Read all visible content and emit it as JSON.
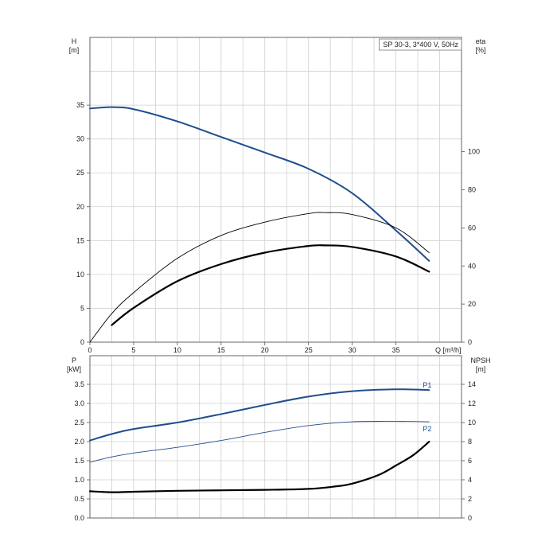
{
  "chart_data": [
    {
      "type": "line",
      "title": "SP 30-3, 3*400 V, 50Hz",
      "xlabel": "Q [m³/h]",
      "ylabel_left": [
        "H",
        "[m]"
      ],
      "ylabel_right": [
        "eta",
        "[%]"
      ],
      "xlim": [
        0,
        42.5
      ],
      "xticks": [
        0,
        5,
        10,
        15,
        20,
        25,
        30,
        35
      ],
      "ylim_left": [
        0,
        45
      ],
      "yticks_left": [
        0,
        5,
        10,
        15,
        20,
        25,
        30,
        35
      ],
      "ylim_right": [
        0,
        160
      ],
      "yticks_right": [
        0,
        20,
        40,
        60,
        80,
        100
      ],
      "grid": true,
      "series": [
        {
          "axis": "left",
          "color": "#1f4e8c",
          "width": 2.0,
          "x": [
            0,
            2.5,
            5,
            10,
            15,
            20,
            25,
            30,
            35,
            38.8
          ],
          "values": [
            34.5,
            34.7,
            34.4,
            32.6,
            30.3,
            28.0,
            25.6,
            22.0,
            16.5,
            12.0
          ]
        },
        {
          "axis": "right",
          "color": "#000000",
          "width": 0.9,
          "x": [
            0,
            2.5,
            5,
            10,
            15,
            20,
            25,
            27,
            30,
            35,
            38.8
          ],
          "values": [
            0,
            15,
            26,
            44,
            56,
            63,
            67.5,
            68,
            67,
            60,
            47
          ]
        },
        {
          "axis": "right",
          "color": "#000000",
          "width": 2.2,
          "x": [
            2.5,
            5,
            10,
            15,
            20,
            25,
            27,
            30,
            35,
            38.8
          ],
          "values": [
            9,
            18,
            32,
            41,
            47,
            50.5,
            50.8,
            50,
            45,
            37
          ]
        }
      ]
    },
    {
      "type": "line",
      "xlabel": "",
      "ylabel_left": [
        "P",
        "[kW]"
      ],
      "ylabel_right": [
        "NPSH",
        "[m]"
      ],
      "xlim": [
        0,
        42.5
      ],
      "ylim_left": [
        0,
        4.25
      ],
      "yticks_left": [
        0.0,
        0.5,
        1.0,
        1.5,
        2.0,
        2.5,
        3.0,
        3.5
      ],
      "ylim_right": [
        0,
        17
      ],
      "yticks_right": [
        0,
        2,
        4,
        6,
        8,
        10,
        12,
        14
      ],
      "grid": true,
      "series": [
        {
          "name": "P1",
          "axis": "left",
          "color": "#1f4e8c",
          "width": 2.0,
          "x": [
            0,
            2.5,
            5,
            10,
            15,
            20,
            25,
            30,
            35,
            38.8
          ],
          "values": [
            2.03,
            2.2,
            2.33,
            2.5,
            2.72,
            2.96,
            3.18,
            3.32,
            3.37,
            3.35
          ]
        },
        {
          "name": "P2",
          "axis": "left",
          "color": "#1f4e8c",
          "width": 0.9,
          "x": [
            0,
            2.5,
            5,
            10,
            15,
            20,
            25,
            30,
            35,
            38.8
          ],
          "values": [
            1.46,
            1.6,
            1.7,
            1.85,
            2.03,
            2.24,
            2.42,
            2.52,
            2.53,
            2.52
          ]
        },
        {
          "axis": "right",
          "color": "#000000",
          "width": 2.2,
          "x": [
            0,
            2.5,
            5,
            10,
            15,
            20,
            25,
            28,
            30,
            33,
            35,
            37,
            38.8
          ],
          "values": [
            2.8,
            2.7,
            2.75,
            2.85,
            2.9,
            2.95,
            3.05,
            3.3,
            3.6,
            4.5,
            5.5,
            6.6,
            8.0
          ]
        }
      ]
    }
  ]
}
